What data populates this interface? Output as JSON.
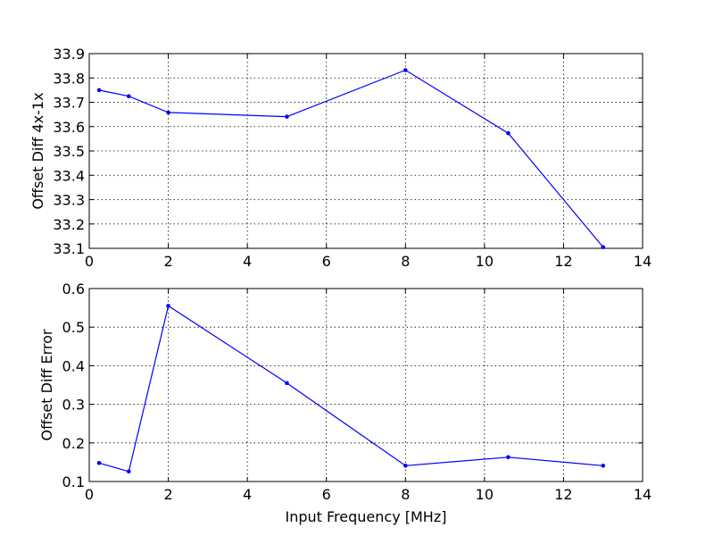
{
  "chart_data": [
    {
      "type": "line",
      "title": "",
      "xlabel": "",
      "ylabel": "Offset Diff 4x-1x",
      "xlim": [
        0,
        14
      ],
      "ylim": [
        33.1,
        33.9
      ],
      "xticks": [
        "0",
        "2",
        "4",
        "6",
        "8",
        "10",
        "12",
        "14"
      ],
      "yticks": [
        "33.1",
        "33.2",
        "33.3",
        "33.4",
        "33.5",
        "33.6",
        "33.7",
        "33.8",
        "33.9"
      ],
      "grid": true,
      "color": "#0000ff",
      "series": [
        {
          "x": [
            0.25,
            1.0,
            2.0,
            5.0,
            8.0,
            10.6,
            13.0
          ],
          "y": [
            33.75,
            33.725,
            33.658,
            33.641,
            33.832,
            33.573,
            33.105
          ]
        }
      ]
    },
    {
      "type": "line",
      "title": "",
      "xlabel": "Input Frequency [MHz]",
      "ylabel": "Offset Diff Error",
      "xlim": [
        0,
        14
      ],
      "ylim": [
        0.1,
        0.6
      ],
      "xticks": [
        "0",
        "2",
        "4",
        "6",
        "8",
        "10",
        "12",
        "14"
      ],
      "yticks": [
        "0.1",
        "0.2",
        "0.3",
        "0.4",
        "0.5",
        "0.6"
      ],
      "grid": true,
      "color": "#0000ff",
      "series": [
        {
          "x": [
            0.25,
            1.0,
            2.0,
            5.0,
            8.0,
            10.6,
            13.0
          ],
          "y": [
            0.148,
            0.126,
            0.555,
            0.355,
            0.141,
            0.163,
            0.141
          ]
        }
      ]
    }
  ]
}
